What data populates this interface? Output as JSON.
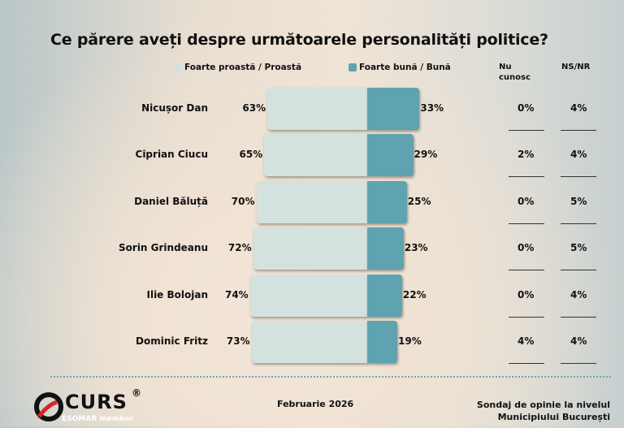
{
  "title": "Ce părere aveți despre următoarele personalități politice?",
  "legend": {
    "negative": "Foarte proastă / Proastă",
    "positive": "Foarte bună / Bună"
  },
  "columns": {
    "unknown": "Nu cunosc",
    "nsnr": "NS/NR"
  },
  "colors": {
    "negative": "#d4e2df",
    "positive": "#5fa3b0"
  },
  "chart_data": {
    "type": "bar",
    "title": "Ce părere aveți despre următoarele personalități politice?",
    "categories": [
      "Nicușor Dan",
      "Ciprian Ciucu",
      "Daniel Băluță",
      "Sorin Grindeanu",
      "Ilie Bolojan",
      "Dominic Fritz"
    ],
    "series": [
      {
        "name": "Foarte proastă / Proastă",
        "values": [
          63,
          65,
          70,
          72,
          74,
          73
        ]
      },
      {
        "name": "Foarte bună / Bună",
        "values": [
          33,
          29,
          25,
          23,
          22,
          19
        ]
      },
      {
        "name": "Nu cunosc",
        "values": [
          0,
          2,
          0,
          0,
          0,
          4
        ]
      },
      {
        "name": "NS/NR",
        "values": [
          4,
          4,
          5,
          5,
          4,
          4
        ]
      }
    ],
    "unit": "%"
  },
  "footer": {
    "logo": "CURS",
    "logo_sub": "ESOMAR member",
    "date": "Februarie 2026",
    "source_line1": "Sondaj de opinie la nivelul",
    "source_line2": "Municipiului București"
  }
}
